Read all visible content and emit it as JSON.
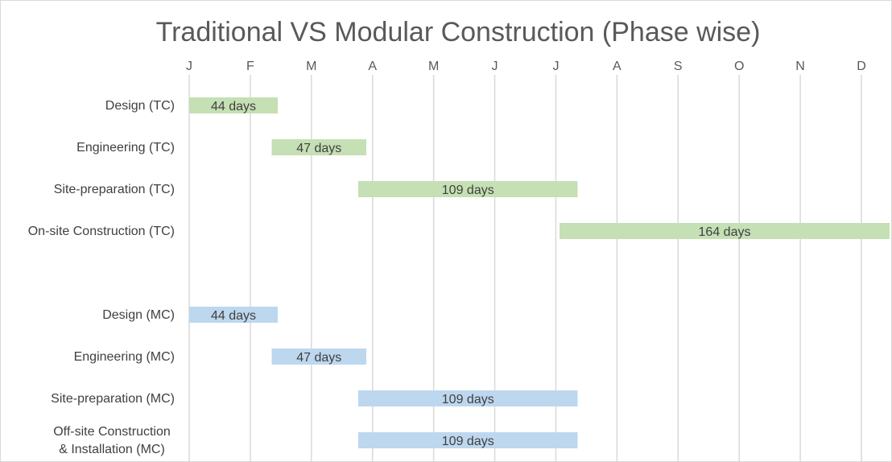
{
  "chart_data": {
    "type": "gantt",
    "title": "Traditional VS Modular Construction (Phase wise)",
    "months": [
      "J",
      "F",
      "M",
      "A",
      "M",
      "J",
      "J",
      "A",
      "S",
      "O",
      "N",
      "D"
    ],
    "x_unit": "day of year",
    "xlim": [
      0,
      334
    ],
    "grid": true,
    "colors": {
      "TC": "#c5e0b4",
      "MC": "#bdd7ee"
    },
    "tasks": [
      {
        "category": "Design (TC)",
        "start": 0,
        "duration": 44,
        "label": "44 days",
        "group": "TC"
      },
      {
        "category": "Engineering (TC)",
        "start": 41,
        "duration": 47,
        "label": "47 days",
        "group": "TC"
      },
      {
        "category": "Site-preparation (TC)",
        "start": 84,
        "duration": 109,
        "label": "109 days",
        "group": "TC"
      },
      {
        "category": "On-site Construction (TC)",
        "start": 184,
        "duration": 164,
        "label": "164 days",
        "group": "TC"
      },
      {
        "category": "",
        "start": null,
        "duration": null,
        "label": "",
        "group": ""
      },
      {
        "category": "Design (MC)",
        "start": 0,
        "duration": 44,
        "label": "44 days",
        "group": "MC"
      },
      {
        "category": "Engineering (MC)",
        "start": 41,
        "duration": 47,
        "label": "47 days",
        "group": "MC"
      },
      {
        "category": "Site-preparation (MC)",
        "start": 84,
        "duration": 109,
        "label": "109 days",
        "group": "MC"
      },
      {
        "category": "Off-site Construction\n& Installation (MC)",
        "start": 84,
        "duration": 109,
        "label": "109 days",
        "group": "MC"
      }
    ]
  }
}
